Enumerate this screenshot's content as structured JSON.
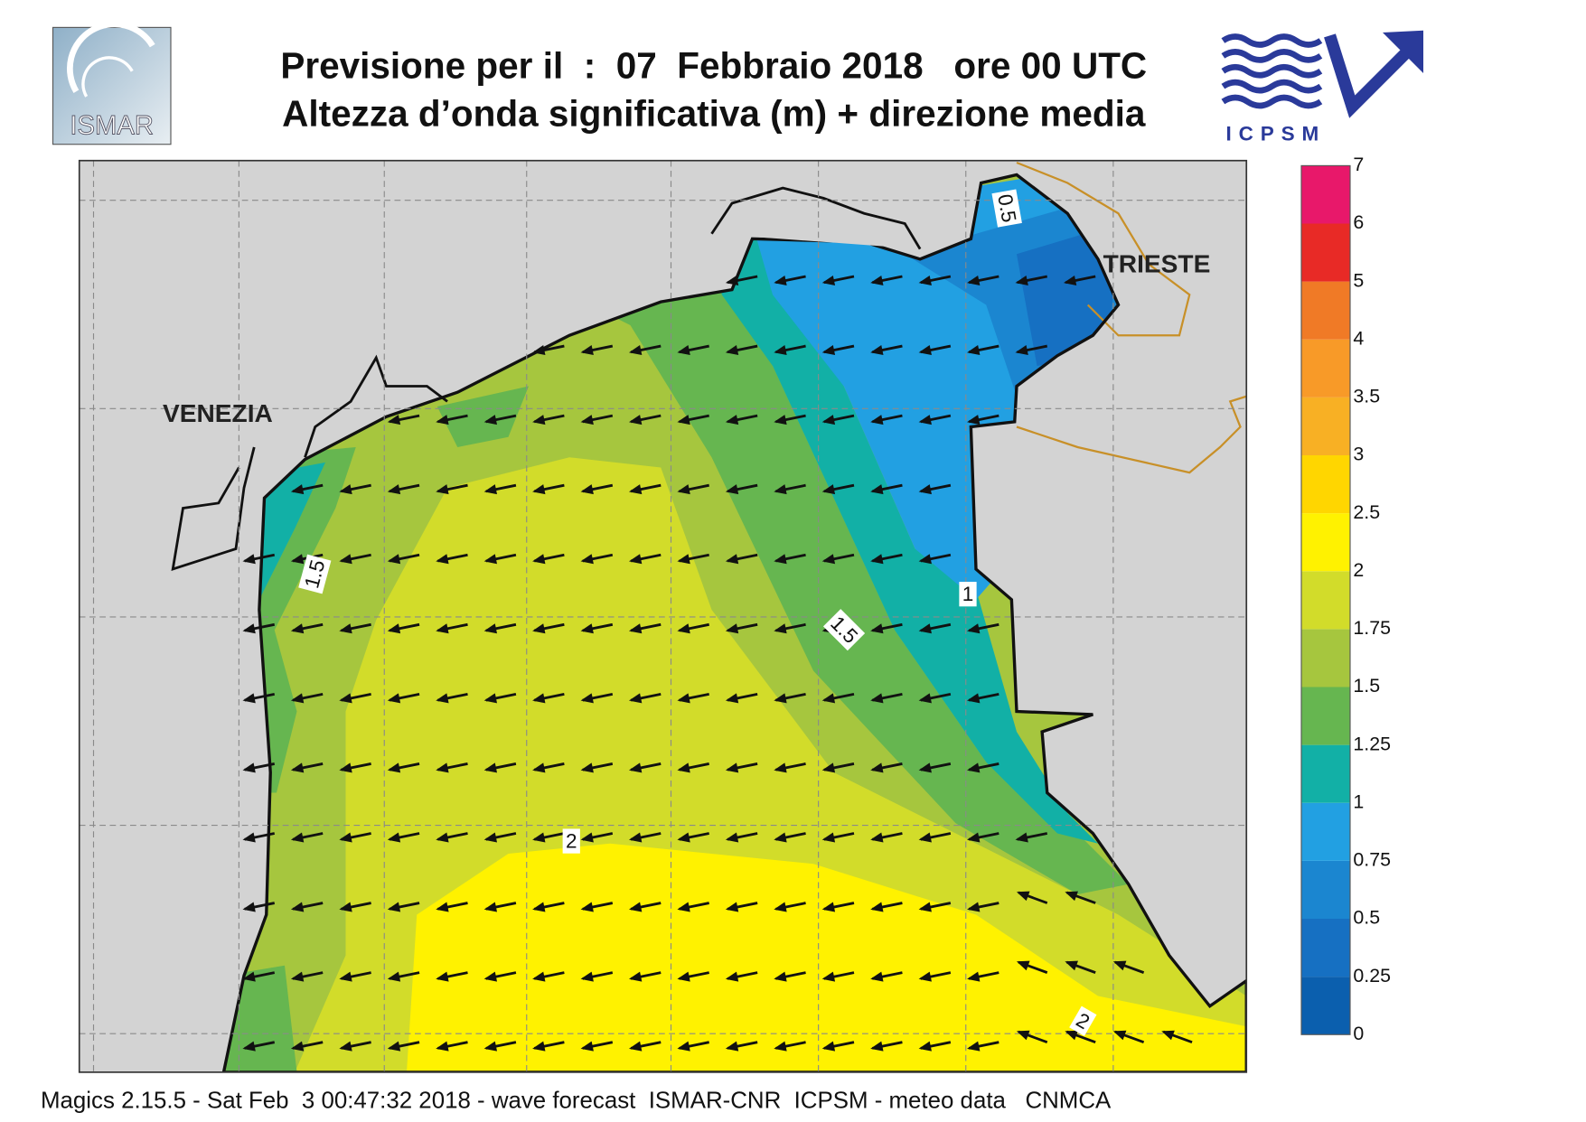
{
  "header": {
    "title_line1": "Previsione per il  :  07  Febbraio 2018   ore 00 UTC",
    "title_line2": "Altezza d’onda significativa (m) + direzione media",
    "logo_left": "ISMAR",
    "logo_right": "ICPSM"
  },
  "map": {
    "cities": [
      "VENEZIA",
      "TRIESTE"
    ],
    "contour_labels": [
      0.5,
      1.5,
      1,
      1.5,
      2,
      2
    ]
  },
  "colorbar": {
    "levels": [
      0,
      0.25,
      0.5,
      0.75,
      1,
      1.25,
      1.5,
      1.75,
      2,
      2.5,
      3,
      3.5,
      4,
      5,
      6,
      7
    ],
    "colors": [
      "#0b5fae",
      "#1670c2",
      "#1b86d0",
      "#22a0e2",
      "#12b0a6",
      "#66b650",
      "#a6c63e",
      "#d2dc2a",
      "#fff200",
      "#ffd600",
      "#f8b024",
      "#f89a28",
      "#f07a26",
      "#e82a26",
      "#e8186a"
    ]
  },
  "footer": "Magics 2.15.5 - Sat Feb  3 00:47:32 2018 - wave forecast  ISMAR-CNR  ICPSM - meteo data   CNMCA"
}
